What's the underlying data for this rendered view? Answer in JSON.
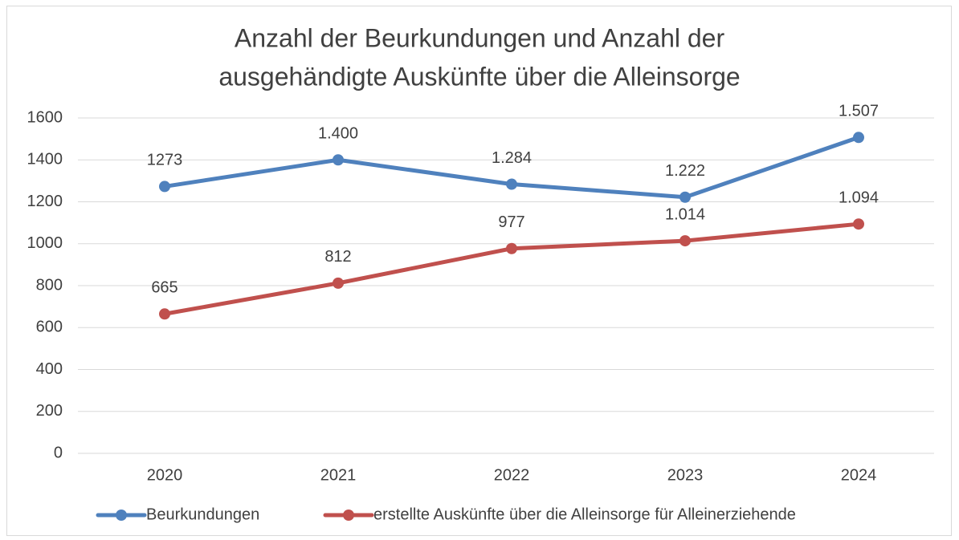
{
  "chart_data": {
    "type": "line",
    "title": [
      "Anzahl der Beurkundungen und Anzahl der",
      "ausgehändigte Auskünfte über die Alleinsorge"
    ],
    "categories": [
      "2020",
      "2021",
      "2022",
      "2023",
      "2024"
    ],
    "series": [
      {
        "name": "Beurkundungen",
        "color": "#4f81bd",
        "values": [
          1273,
          1400,
          1284,
          1222,
          1507
        ],
        "value_labels": [
          "1273",
          "1.400",
          "1.284",
          "1.222",
          "1.507"
        ]
      },
      {
        "name": "erstellte Auskünfte über die Alleinsorge für Alleinerziehende",
        "color": "#c0504d",
        "values": [
          665,
          812,
          977,
          1014,
          1094
        ],
        "value_labels": [
          "665",
          "812",
          "977",
          "1.014",
          "1.094"
        ]
      }
    ],
    "ylim": [
      0,
      1600
    ],
    "yticks": [
      0,
      200,
      400,
      600,
      800,
      1000,
      1200,
      1400,
      1600
    ],
    "grid": true,
    "legend": "bottom"
  }
}
